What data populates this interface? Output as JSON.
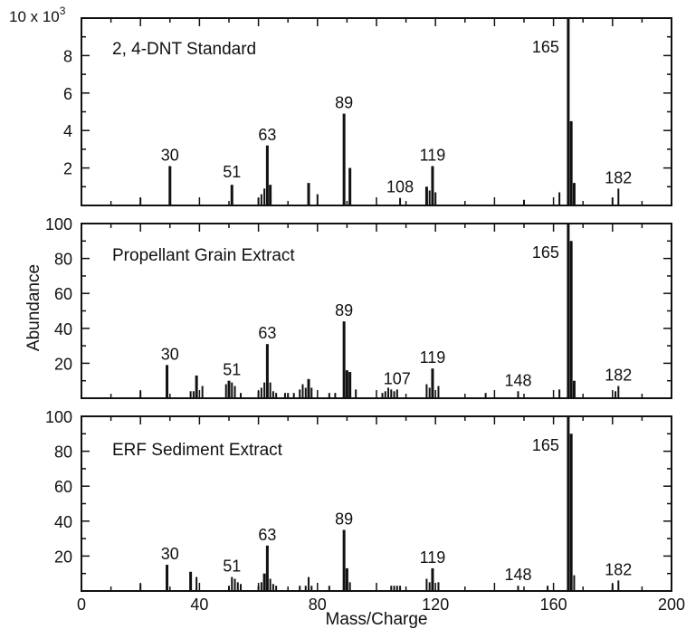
{
  "figure": {
    "ylabel": "Abundance",
    "xlabel": "Mass/Charge",
    "top_scale_label": "10 x 10",
    "top_scale_exponent": "3"
  },
  "chart_data": [
    {
      "type": "bar",
      "title": "2, 4-DNT Standard",
      "xlim": [
        0,
        200
      ],
      "ylim": [
        0,
        10
      ],
      "yticks": [
        "2",
        "4",
        "6",
        "8"
      ],
      "xticks": [],
      "peak_labels": [
        {
          "x": 30,
          "text": "30",
          "y": 2.1
        },
        {
          "x": 51,
          "text": "51",
          "y": 1.2
        },
        {
          "x": 63,
          "text": "63",
          "y": 3.2
        },
        {
          "x": 89,
          "text": "89",
          "y": 4.9
        },
        {
          "x": 108,
          "text": "108",
          "y": 0.4
        },
        {
          "x": 119,
          "text": "119",
          "y": 2.1
        },
        {
          "x": 165,
          "text": "165",
          "y": 10
        },
        {
          "x": 182,
          "text": "182",
          "y": 0.9
        }
      ],
      "peaks": [
        [
          20,
          0.4
        ],
        [
          30,
          2.1
        ],
        [
          51,
          1.1
        ],
        [
          60,
          0.4
        ],
        [
          61,
          0.6
        ],
        [
          62,
          0.9
        ],
        [
          63,
          3.2
        ],
        [
          64,
          1.1
        ],
        [
          77,
          1.2
        ],
        [
          80,
          0.6
        ],
        [
          89,
          4.9
        ],
        [
          91,
          2.0
        ],
        [
          108,
          0.4
        ],
        [
          117,
          1.0
        ],
        [
          118,
          0.8
        ],
        [
          119,
          2.1
        ],
        [
          120,
          0.7
        ],
        [
          150,
          0.3
        ],
        [
          162,
          0.7
        ],
        [
          165,
          10
        ],
        [
          166,
          4.5
        ],
        [
          167,
          1.2
        ],
        [
          180,
          0.4
        ],
        [
          182,
          0.9
        ]
      ]
    },
    {
      "type": "bar",
      "title": "Propellant Grain Extract",
      "xlim": [
        0,
        200
      ],
      "ylim": [
        0,
        100
      ],
      "yticks": [
        "20",
        "40",
        "60",
        "80",
        "100"
      ],
      "xticks": [],
      "peak_labels": [
        {
          "x": 30,
          "text": "30",
          "y": 19
        },
        {
          "x": 51,
          "text": "51",
          "y": 10
        },
        {
          "x": 63,
          "text": "63",
          "y": 31
        },
        {
          "x": 89,
          "text": "89",
          "y": 44
        },
        {
          "x": 107,
          "text": "107",
          "y": 5
        },
        {
          "x": 119,
          "text": "119",
          "y": 17
        },
        {
          "x": 148,
          "text": "148",
          "y": 4
        },
        {
          "x": 165,
          "text": "165",
          "y": 100
        },
        {
          "x": 182,
          "text": "182",
          "y": 7
        }
      ],
      "peaks": [
        [
          20,
          4
        ],
        [
          29,
          19
        ],
        [
          37,
          4
        ],
        [
          38,
          4
        ],
        [
          39,
          13
        ],
        [
          41,
          7
        ],
        [
          49,
          8
        ],
        [
          50,
          10
        ],
        [
          51,
          9
        ],
        [
          52,
          7
        ],
        [
          54,
          3
        ],
        [
          60,
          4
        ],
        [
          61,
          6
        ],
        [
          62,
          9
        ],
        [
          63,
          31
        ],
        [
          64,
          9
        ],
        [
          65,
          4
        ],
        [
          66,
          3
        ],
        [
          69,
          3
        ],
        [
          70,
          3
        ],
        [
          72,
          3
        ],
        [
          74,
          5
        ],
        [
          75,
          8
        ],
        [
          76,
          6
        ],
        [
          77,
          11
        ],
        [
          78,
          6
        ],
        [
          84,
          3
        ],
        [
          86,
          3
        ],
        [
          89,
          44
        ],
        [
          90,
          16
        ],
        [
          91,
          15
        ],
        [
          93,
          5
        ],
        [
          102,
          3
        ],
        [
          103,
          4
        ],
        [
          104,
          6
        ],
        [
          105,
          5
        ],
        [
          106,
          4
        ],
        [
          107,
          5
        ],
        [
          117,
          8
        ],
        [
          118,
          6
        ],
        [
          119,
          17
        ],
        [
          121,
          7
        ],
        [
          137,
          3
        ],
        [
          148,
          4
        ],
        [
          162,
          5
        ],
        [
          165,
          100
        ],
        [
          166,
          90
        ],
        [
          167,
          10
        ],
        [
          181,
          4
        ],
        [
          182,
          7
        ]
      ]
    },
    {
      "type": "bar",
      "title": "ERF Sediment Extract",
      "xlim": [
        0,
        200
      ],
      "ylim": [
        0,
        100
      ],
      "yticks": [
        "20",
        "40",
        "60",
        "80",
        "100"
      ],
      "xticks": [
        "0",
        "40",
        "80",
        "120",
        "160",
        "200"
      ],
      "peak_labels": [
        {
          "x": 30,
          "text": "30",
          "y": 15
        },
        {
          "x": 51,
          "text": "51",
          "y": 8
        },
        {
          "x": 63,
          "text": "63",
          "y": 26
        },
        {
          "x": 89,
          "text": "89",
          "y": 35
        },
        {
          "x": 119,
          "text": "119",
          "y": 13
        },
        {
          "x": 148,
          "text": "148",
          "y": 3
        },
        {
          "x": 165,
          "text": "165",
          "y": 100
        },
        {
          "x": 182,
          "text": "182",
          "y": 6
        }
      ],
      "peaks": [
        [
          20,
          4
        ],
        [
          29,
          15
        ],
        [
          37,
          11
        ],
        [
          39,
          8
        ],
        [
          50,
          3
        ],
        [
          51,
          8
        ],
        [
          52,
          7
        ],
        [
          53,
          5
        ],
        [
          54,
          4
        ],
        [
          60,
          3
        ],
        [
          61,
          5
        ],
        [
          62,
          10
        ],
        [
          63,
          26
        ],
        [
          64,
          7
        ],
        [
          65,
          4
        ],
        [
          66,
          3
        ],
        [
          74,
          3
        ],
        [
          76,
          3
        ],
        [
          77,
          8
        ],
        [
          78,
          3
        ],
        [
          84,
          3
        ],
        [
          89,
          35
        ],
        [
          90,
          13
        ],
        [
          91,
          5
        ],
        [
          105,
          3
        ],
        [
          106,
          3
        ],
        [
          107,
          3
        ],
        [
          108,
          3
        ],
        [
          117,
          7
        ],
        [
          118,
          5
        ],
        [
          119,
          13
        ],
        [
          121,
          5
        ],
        [
          148,
          3
        ],
        [
          158,
          3
        ],
        [
          165,
          100
        ],
        [
          166,
          90
        ],
        [
          167,
          9
        ],
        [
          180,
          4
        ],
        [
          182,
          6
        ]
      ]
    }
  ]
}
